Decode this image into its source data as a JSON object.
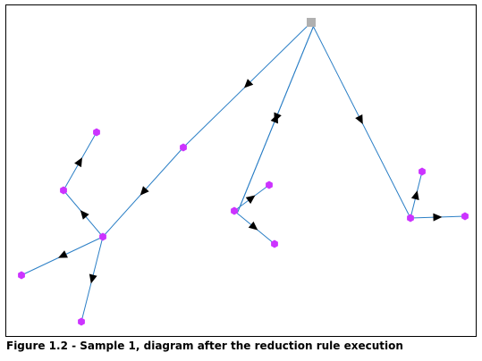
{
  "caption": "Figure 1.2 - Sample 1, diagram after the reduction rule execution",
  "colors": {
    "edge": "#2b7fc6",
    "node": "#cc33ff",
    "root": "#b0b0b0",
    "arrow": "#000000",
    "border": "#000000"
  },
  "root_node": "root",
  "nodes": [
    {
      "id": "root"
    },
    {
      "id": "n-a"
    },
    {
      "id": "n-b"
    },
    {
      "id": "n-c"
    },
    {
      "id": "n-d"
    },
    {
      "id": "n-e"
    },
    {
      "id": "n-f"
    },
    {
      "id": "n-g"
    },
    {
      "id": "n-h"
    },
    {
      "id": "n-i"
    },
    {
      "id": "n-j"
    },
    {
      "id": "n-k"
    },
    {
      "id": "n-l"
    }
  ],
  "edges": [
    {
      "from": "root",
      "to": "n-a"
    },
    {
      "from": "n-a",
      "to": "n-b"
    },
    {
      "from": "n-b",
      "to": "n-c"
    },
    {
      "from": "n-c",
      "to": "n-d"
    },
    {
      "from": "n-b",
      "to": "n-e"
    },
    {
      "from": "n-b",
      "to": "n-f"
    },
    {
      "from": "root",
      "to": "n-g"
    },
    {
      "from": "n-g",
      "to": "root"
    },
    {
      "from": "n-g",
      "to": "n-h"
    },
    {
      "from": "n-g",
      "to": "n-i"
    },
    {
      "from": "root",
      "to": "n-j"
    },
    {
      "from": "n-j",
      "to": "n-k"
    },
    {
      "from": "n-j",
      "to": "n-l"
    }
  ]
}
